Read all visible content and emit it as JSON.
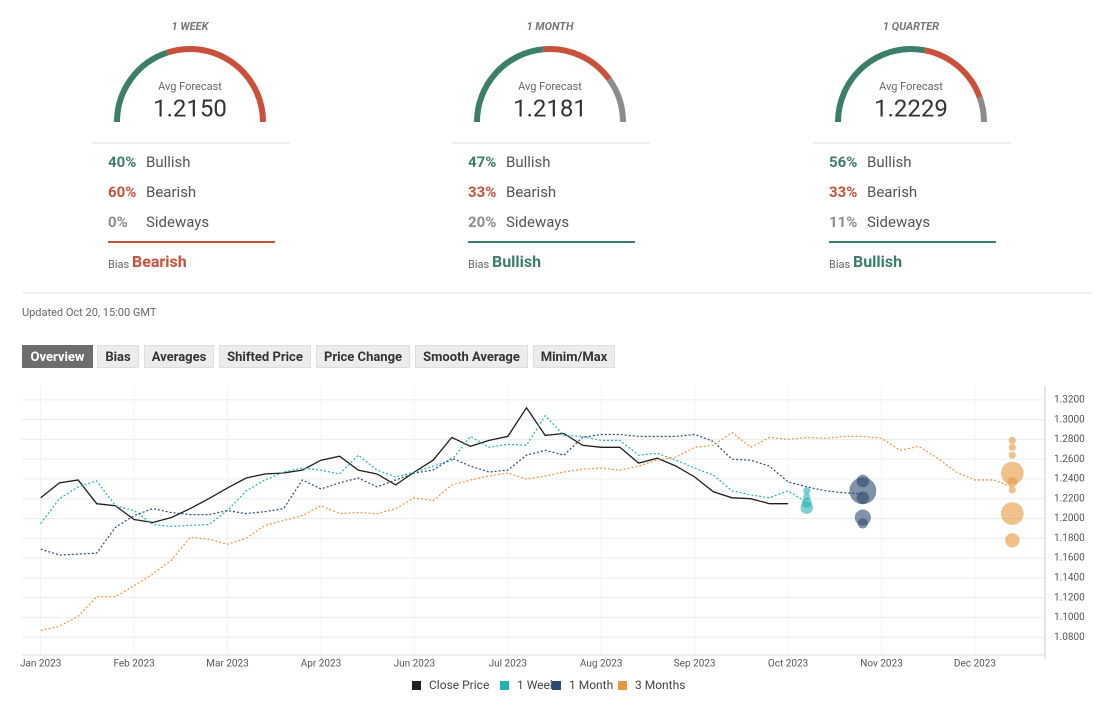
{
  "forecasts": [
    {
      "period": "1 WEEK",
      "avg_label": "Avg Forecast",
      "avg": "1.2150",
      "rows": [
        {
          "pct": {
            "value": 40,
            "label": "40%"
          },
          "name": "Bullish",
          "color": "#3b7f6b"
        },
        {
          "pct": {
            "value": 60,
            "label": "60%"
          },
          "name": "Bearish",
          "color": "#c9503a"
        },
        {
          "pct": {
            "value": 0,
            "label": "0%"
          },
          "name": "Sideways",
          "color": "#8c8c8c"
        }
      ],
      "bias_label": "Bias",
      "bias": "Bearish",
      "bias_color": "#c9503a"
    },
    {
      "period": "1 MONTH",
      "avg_label": "Avg Forecast",
      "avg": "1.2181",
      "rows": [
        {
          "pct": {
            "value": 47,
            "label": "47%"
          },
          "name": "Bullish",
          "color": "#3b7f6b"
        },
        {
          "pct": {
            "value": 33,
            "label": "33%"
          },
          "name": "Bearish",
          "color": "#c9503a"
        },
        {
          "pct": {
            "value": 20,
            "label": "20%"
          },
          "name": "Sideways",
          "color": "#8c8c8c"
        }
      ],
      "bias_label": "Bias",
      "bias": "Bullish",
      "bias_color": "#3b7f6b"
    },
    {
      "period": "1 QUARTER",
      "avg_label": "Avg Forecast",
      "avg": "1.2229",
      "rows": [
        {
          "pct": {
            "value": 56,
            "label": "56%"
          },
          "name": "Bullish",
          "color": "#3b7f6b"
        },
        {
          "pct": {
            "value": 33,
            "label": "33%"
          },
          "name": "Bearish",
          "color": "#c9503a"
        },
        {
          "pct": {
            "value": 11,
            "label": "11%"
          },
          "name": "Sideways",
          "color": "#8c8c8c"
        }
      ],
      "bias_label": "Bias",
      "bias": "Bullish",
      "bias_color": "#3b7f6b"
    }
  ],
  "updated": "Updated Oct 20, 15:00 GMT",
  "tabs": [
    "Overview",
    "Bias",
    "Averages",
    "Shifted Price",
    "Price Change",
    "Smooth Average",
    "Minim/Max"
  ],
  "active_tab": 0,
  "chart_data": {
    "type": "line",
    "x": [
      0,
      0.2,
      0.4,
      0.6,
      0.8,
      1,
      1.2,
      1.4,
      1.6,
      1.8,
      2,
      2.2,
      2.4,
      2.6,
      2.8,
      3,
      3.2,
      3.4,
      3.6,
      3.8,
      4,
      4.2,
      4.4,
      4.6,
      4.8,
      5,
      5.2,
      5.4,
      5.6,
      5.8,
      6,
      6.2,
      6.4,
      6.6,
      6.8,
      7,
      7.2,
      7.4,
      7.6,
      7.8,
      8,
      8.2,
      8.4,
      8.6,
      8.8,
      9,
      9.2,
      9.4,
      9.6,
      9.8,
      10,
      10.2,
      10.4
    ],
    "xlim": [
      -0.2,
      10.75
    ],
    "xticks": [
      {
        "value": 0,
        "label": "Jan 2023"
      },
      {
        "value": 1,
        "label": "Feb 2023"
      },
      {
        "value": 2,
        "label": "Mar 2023"
      },
      {
        "value": 3,
        "label": "Apr 2023"
      },
      {
        "value": 4,
        "label": "Jun 2023"
      },
      {
        "value": 5,
        "label": "Jul 2023"
      },
      {
        "value": 6,
        "label": "Aug 2023"
      },
      {
        "value": 7,
        "label": "Sep 2023"
      },
      {
        "value": 8,
        "label": "Oct 2023"
      },
      {
        "value": 9,
        "label": "Nov 2023"
      },
      {
        "value": 10,
        "label": "Dec 2023"
      }
    ],
    "ylim": [
      1.062,
      1.334
    ],
    "yticks": [
      {
        "value": 1.08,
        "label": "1.0800"
      },
      {
        "value": 1.1,
        "label": "1.1000"
      },
      {
        "value": 1.12,
        "label": "1.1200"
      },
      {
        "value": 1.14,
        "label": "1.1400"
      },
      {
        "value": 1.16,
        "label": "1.1600"
      },
      {
        "value": 1.18,
        "label": "1.1800"
      },
      {
        "value": 1.2,
        "label": "1.2000"
      },
      {
        "value": 1.22,
        "label": "1.2200"
      },
      {
        "value": 1.24,
        "label": "1.2400"
      },
      {
        "value": 1.26,
        "label": "1.2600"
      },
      {
        "value": 1.28,
        "label": "1.2800"
      },
      {
        "value": 1.3,
        "label": "1.3000"
      },
      {
        "value": 1.32,
        "label": "1.3200"
      }
    ],
    "grid": true,
    "series": [
      {
        "name": "Close Price",
        "color": "#1f1f1f",
        "style": "solid",
        "values": [
          1.221,
          1.236,
          1.239,
          1.215,
          1.213,
          1.199,
          1.196,
          1.201,
          1.21,
          1.22,
          1.231,
          1.241,
          1.245,
          1.246,
          1.249,
          1.259,
          1.263,
          1.249,
          1.245,
          1.234,
          1.247,
          1.259,
          1.282,
          1.273,
          1.279,
          1.283,
          1.312,
          1.284,
          1.286,
          1.274,
          1.272,
          1.272,
          1.256,
          1.261,
          1.253,
          1.242,
          1.227,
          1.221,
          1.22,
          1.215,
          1.215,
          null,
          null,
          null,
          null,
          null,
          null,
          null,
          null,
          null,
          null,
          null,
          null
        ]
      },
      {
        "name": "1 Week",
        "color": "#21b3b0",
        "style": "dotted",
        "values": [
          1.195,
          1.22,
          1.232,
          1.238,
          1.213,
          1.208,
          1.194,
          1.192,
          1.193,
          1.194,
          1.208,
          1.228,
          1.239,
          1.247,
          1.251,
          1.249,
          1.245,
          1.264,
          1.249,
          1.242,
          1.247,
          1.253,
          1.259,
          1.283,
          1.272,
          1.275,
          1.274,
          1.304,
          1.284,
          1.283,
          1.279,
          1.279,
          1.264,
          1.266,
          1.259,
          1.251,
          1.244,
          1.228,
          1.224,
          1.221,
          1.228,
          1.216,
          null,
          null,
          null,
          null,
          null,
          null,
          null,
          null,
          null,
          null,
          null
        ],
        "forecast": {
          "x": 8.2,
          "values": [
            1.228,
            1.222,
            1.216,
            1.211
          ],
          "sizes": [
            1,
            1,
            2,
            3
          ]
        }
      },
      {
        "name": "1 Month",
        "color": "#2c4a6e",
        "style": "dotted",
        "values": [
          1.169,
          1.163,
          1.164,
          1.165,
          1.191,
          1.203,
          1.21,
          1.206,
          1.204,
          1.204,
          1.208,
          1.205,
          1.207,
          1.21,
          1.239,
          1.23,
          1.236,
          1.241,
          1.232,
          1.239,
          1.246,
          1.249,
          1.261,
          1.253,
          1.247,
          1.249,
          1.264,
          1.269,
          1.264,
          1.282,
          1.285,
          1.285,
          1.283,
          1.283,
          1.283,
          1.285,
          1.278,
          1.26,
          1.259,
          1.253,
          1.237,
          1.232,
          1.228,
          1.226,
          1.225,
          null,
          null,
          null,
          null,
          null,
          null,
          null,
          null
        ],
        "forecast": {
          "x": 8.8,
          "values": [
            1.238,
            1.228,
            1.221,
            1.201,
            1.195
          ],
          "sizes": [
            3,
            14,
            3,
            5,
            2
          ]
        }
      },
      {
        "name": "3 Months",
        "color": "#e8983f",
        "style": "dotted",
        "values": [
          1.087,
          1.091,
          1.101,
          1.121,
          1.121,
          1.132,
          1.144,
          1.158,
          1.181,
          1.179,
          1.174,
          1.18,
          1.193,
          1.198,
          1.203,
          1.213,
          1.205,
          1.206,
          1.205,
          1.21,
          1.221,
          1.218,
          1.234,
          1.239,
          1.243,
          1.246,
          1.24,
          1.243,
          1.247,
          1.25,
          1.251,
          1.249,
          1.253,
          1.259,
          1.262,
          1.272,
          1.274,
          1.287,
          1.272,
          1.282,
          1.28,
          1.282,
          1.281,
          1.283,
          1.283,
          1.281,
          1.269,
          1.273,
          1.261,
          1.247,
          1.239,
          1.239,
          1.232
        ],
        "forecast": {
          "x": 10.4,
          "values": [
            1.279,
            1.272,
            1.264,
            1.246,
            1.237,
            1.229,
            1.205,
            1.178
          ],
          "sizes": [
            1,
            1,
            1,
            10,
            2,
            1,
            10,
            4
          ]
        }
      }
    ]
  }
}
